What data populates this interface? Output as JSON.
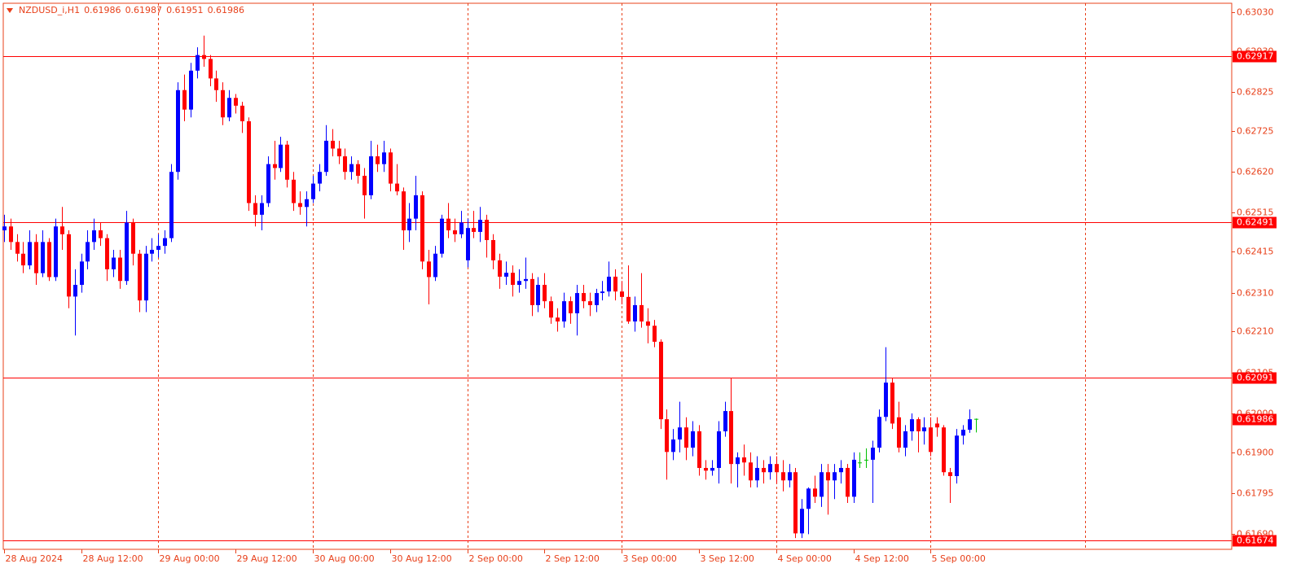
{
  "chart_data": {
    "type": "candlestick",
    "symbol": "NZDUSD_i,H1",
    "xlim": [
      -0.1,
      190.8
    ],
    "ylim": [
      0.61651,
      0.63053
    ],
    "xticks": [
      {
        "value": 0,
        "label": "28 Aug 2024"
      },
      {
        "value": 12,
        "label": "28 Aug 12:00"
      },
      {
        "value": 24,
        "label": "29 Aug 00:00"
      },
      {
        "value": 36,
        "label": "29 Aug 12:00"
      },
      {
        "value": 48,
        "label": "30 Aug 00:00"
      },
      {
        "value": 60,
        "label": "30 Aug 12:00"
      },
      {
        "value": 72,
        "label": "2 Sep 00:00"
      },
      {
        "value": 84,
        "label": "2 Sep 12:00"
      },
      {
        "value": 96,
        "label": "3 Sep 00:00"
      },
      {
        "value": 108,
        "label": "3 Sep 12:00"
      },
      {
        "value": 120,
        "label": "4 Sep 00:00"
      },
      {
        "value": 132,
        "label": "4 Sep 12:00"
      },
      {
        "value": 144,
        "label": "5 Sep 00:00"
      }
    ],
    "vgrid": [
      24,
      48,
      72,
      96,
      120,
      144,
      168
    ],
    "yticks": [
      {
        "value": 0.6303,
        "label": "0.63030"
      },
      {
        "value": 0.6293,
        "label": "0.62930"
      },
      {
        "value": 0.62825,
        "label": "0.62825"
      },
      {
        "value": 0.62725,
        "label": "0.62725"
      },
      {
        "value": 0.6262,
        "label": "0.62620"
      },
      {
        "value": 0.62515,
        "label": "0.62515"
      },
      {
        "value": 0.62415,
        "label": "0.62415"
      },
      {
        "value": 0.6231,
        "label": "0.62310"
      },
      {
        "value": 0.6221,
        "label": "0.62210"
      },
      {
        "value": 0.62105,
        "label": "0.62105"
      },
      {
        "value": 0.62,
        "label": "0.62000"
      },
      {
        "value": 0.619,
        "label": "0.61900"
      },
      {
        "value": 0.61795,
        "label": "0.61795"
      },
      {
        "value": 0.6169,
        "label": "0.61690"
      }
    ],
    "levels": [
      0.62917,
      0.62491,
      0.62091,
      0.61674
    ],
    "up_color": "#0000ff",
    "down_color": "#ff0000",
    "doji_color": "#00c000",
    "level_color": "#ff0000",
    "open": [
      0.6247,
      0.6248,
      0.6244,
      0.6241,
      0.6238,
      0.6244,
      0.6236,
      0.6244,
      0.6235,
      0.6248,
      0.6246,
      0.623,
      0.6233,
      0.6239,
      0.6244,
      0.6247,
      0.6245,
      0.6237,
      0.624,
      0.6234,
      0.6249,
      0.6241,
      0.6229,
      0.6241,
      0.6242,
      0.6243,
      0.6245,
      0.6262,
      0.6283,
      0.6278,
      0.6288,
      0.6292,
      0.6291,
      0.6286,
      0.6283,
      0.6276,
      0.6281,
      0.6279,
      0.6275,
      0.6254,
      0.6251,
      0.6254,
      0.6264,
      0.6263,
      0.6269,
      0.626,
      0.6254,
      0.6253,
      0.6255,
      0.6259,
      0.6262,
      0.627,
      0.6268,
      0.6266,
      0.6262,
      0.6264,
      0.6261,
      0.6256,
      0.6266,
      0.6264,
      0.6267,
      0.6259,
      0.6257,
      0.6247,
      0.625,
      0.6256,
      0.6239,
      0.6235,
      0.6241,
      0.625,
      0.6247,
      0.6246,
      0.62393,
      0.62476,
      0.62466,
      0.62497,
      0.62445,
      0.62393,
      0.62351,
      0.62361,
      0.6233,
      0.6234,
      0.62345,
      0.62278,
      0.6233,
      0.62288,
      0.62246,
      0.62236,
      0.62288,
      0.62257,
      0.62309,
      0.62288,
      0.62278,
      0.62309,
      0.62313,
      0.62351,
      0.62313,
      0.62299,
      0.62236,
      0.62278,
      0.62236,
      0.62225,
      0.62184,
      0.61985,
      0.61901,
      0.61933,
      0.61964,
      0.61912,
      0.61954,
      0.6186,
      0.61853,
      0.6186,
      0.61954,
      0.62006,
      0.6187,
      0.61887,
      0.61874,
      0.61828,
      0.6186,
      0.61849,
      0.6187,
      0.61849,
      0.61828,
      0.61849,
      0.61692,
      0.61755,
      0.61807,
      0.61786,
      0.61849,
      0.61828,
      0.61849,
      0.6186,
      0.61786,
      0.61874,
      0.61881,
      0.61881,
      0.61912,
      0.61991,
      0.62079,
      0.6199,
      0.61912,
      0.61954,
      0.61985,
      0.61954,
      0.61964,
      0.61974,
      0.61964,
      0.61849,
      0.61839,
      0.61943,
      0.61958,
      0.61986
    ],
    "high": [
      0.6251,
      0.625,
      0.6246,
      0.6244,
      0.6247,
      0.6246,
      0.6247,
      0.6245,
      0.625,
      0.6253,
      0.6247,
      0.6237,
      0.6241,
      0.6247,
      0.625,
      0.6249,
      0.6246,
      0.6242,
      0.6242,
      0.6252,
      0.625,
      0.6242,
      0.6243,
      0.6245,
      0.6246,
      0.6247,
      0.6264,
      0.6285,
      0.6287,
      0.629,
      0.6294,
      0.6297,
      0.6292,
      0.6288,
      0.6285,
      0.6283,
      0.6282,
      0.628,
      0.6276,
      0.6256,
      0.6256,
      0.6266,
      0.627,
      0.6271,
      0.627,
      0.6262,
      0.6257,
      0.6257,
      0.6261,
      0.6264,
      0.6274,
      0.6273,
      0.627,
      0.6268,
      0.6266,
      0.6265,
      0.6263,
      0.627,
      0.6269,
      0.627,
      0.6268,
      0.6264,
      0.6258,
      0.6254,
      0.6261,
      0.6257,
      0.6242,
      0.6243,
      0.6251,
      0.6254,
      0.625,
      0.6252,
      0.625,
      0.6252,
      0.6253,
      0.6251,
      0.6246,
      0.6241,
      0.6239,
      0.6238,
      0.6237,
      0.624,
      0.6236,
      0.6235,
      0.6236,
      0.623,
      0.6227,
      0.6231,
      0.623,
      0.6233,
      0.6233,
      0.6231,
      0.6232,
      0.6234,
      0.6239,
      0.6237,
      0.6234,
      0.6238,
      0.623,
      0.6236,
      0.6227,
      0.6224,
      0.6219,
      0.6201,
      0.6196,
      0.6203,
      0.6199,
      0.6198,
      0.6197,
      0.6188,
      0.6188,
      0.6198,
      0.6203,
      0.6209,
      0.619,
      0.6192,
      0.619,
      0.6189,
      0.6188,
      0.6189,
      0.6189,
      0.6188,
      0.6187,
      0.6186,
      0.6178,
      0.6181,
      0.6184,
      0.6187,
      0.6187,
      0.6187,
      0.6188,
      0.6187,
      0.619,
      0.619,
      0.6191,
      0.6193,
      0.6201,
      0.6217,
      0.6209,
      0.6203,
      0.6197,
      0.62,
      0.6199,
      0.6199,
      0.6199,
      0.6199,
      0.6197,
      0.6186,
      0.6196,
      0.6197,
      0.6201,
      0.61987
    ],
    "low": [
      0.6244,
      0.6242,
      0.6239,
      0.6236,
      0.6237,
      0.6233,
      0.6235,
      0.6234,
      0.6234,
      0.6242,
      0.6227,
      0.622,
      0.6231,
      0.6237,
      0.6242,
      0.6243,
      0.6234,
      0.6235,
      0.6232,
      0.6233,
      0.6238,
      0.6226,
      0.6226,
      0.6239,
      0.624,
      0.6241,
      0.6244,
      0.626,
      0.6275,
      0.6276,
      0.6286,
      0.6289,
      0.6284,
      0.628,
      0.6274,
      0.6275,
      0.6277,
      0.6272,
      0.6252,
      0.6248,
      0.6247,
      0.6253,
      0.626,
      0.6262,
      0.6258,
      0.6252,
      0.6251,
      0.6248,
      0.6254,
      0.6257,
      0.6261,
      0.6266,
      0.6264,
      0.626,
      0.626,
      0.6259,
      0.625,
      0.6255,
      0.6262,
      0.6262,
      0.6257,
      0.6256,
      0.6242,
      0.6244,
      0.6247,
      0.6237,
      0.6228,
      0.6234,
      0.624,
      0.6245,
      0.6244,
      0.6245,
      0.62375,
      0.6245,
      0.6244,
      0.624,
      0.6237,
      0.6232,
      0.6233,
      0.623,
      0.6231,
      0.6232,
      0.6225,
      0.6226,
      0.6227,
      0.6223,
      0.6221,
      0.6222,
      0.6223,
      0.622,
      0.6227,
      0.6225,
      0.6226,
      0.6229,
      0.623,
      0.6229,
      0.6228,
      0.6223,
      0.6221,
      0.6222,
      0.6218,
      0.6217,
      0.6196,
      0.6183,
      0.6188,
      0.619,
      0.6188,
      0.6189,
      0.6184,
      0.6183,
      0.6184,
      0.6182,
      0.6194,
      0.6182,
      0.6181,
      0.6184,
      0.6181,
      0.6181,
      0.6182,
      0.6183,
      0.6182,
      0.618,
      0.6181,
      0.6168,
      0.6168,
      0.6169,
      0.6177,
      0.6176,
      0.6174,
      0.6178,
      0.6182,
      0.6177,
      0.6177,
      0.6186,
      0.6186,
      0.6177,
      0.619,
      0.6198,
      0.6196,
      0.619,
      0.6189,
      0.6193,
      0.619,
      0.6192,
      0.6189,
      0.6194,
      0.6184,
      0.6177,
      0.6182,
      0.6192,
      0.6195,
      0.61951
    ],
    "close": [
      0.6248,
      0.6244,
      0.6241,
      0.6238,
      0.6244,
      0.6236,
      0.6244,
      0.6235,
      0.6248,
      0.6246,
      0.623,
      0.6233,
      0.6239,
      0.6244,
      0.6247,
      0.6245,
      0.6237,
      0.624,
      0.6234,
      0.6249,
      0.6241,
      0.6229,
      0.6241,
      0.6242,
      0.6243,
      0.6245,
      0.6262,
      0.6283,
      0.6278,
      0.6288,
      0.6292,
      0.6291,
      0.6286,
      0.6283,
      0.6276,
      0.6281,
      0.6279,
      0.6275,
      0.6254,
      0.6251,
      0.6254,
      0.6264,
      0.6263,
      0.6269,
      0.626,
      0.6254,
      0.6253,
      0.6255,
      0.6259,
      0.6262,
      0.627,
      0.6268,
      0.6266,
      0.6262,
      0.6264,
      0.6261,
      0.6256,
      0.6266,
      0.6264,
      0.6267,
      0.6259,
      0.6257,
      0.6247,
      0.625,
      0.6256,
      0.6239,
      0.6235,
      0.6241,
      0.625,
      0.6247,
      0.6246,
      0.6249,
      0.62476,
      0.62466,
      0.62497,
      0.62445,
      0.62393,
      0.62351,
      0.62361,
      0.6233,
      0.6234,
      0.62345,
      0.62278,
      0.6233,
      0.62288,
      0.62246,
      0.62236,
      0.62288,
      0.62257,
      0.62309,
      0.62288,
      0.62278,
      0.62309,
      0.62313,
      0.62351,
      0.62313,
      0.62299,
      0.62236,
      0.62278,
      0.62236,
      0.62225,
      0.62184,
      0.61985,
      0.61901,
      0.61933,
      0.61964,
      0.61912,
      0.61954,
      0.6186,
      0.61853,
      0.6186,
      0.61954,
      0.62006,
      0.6187,
      0.61887,
      0.61874,
      0.61828,
      0.6186,
      0.61849,
      0.6187,
      0.61849,
      0.61828,
      0.61849,
      0.61692,
      0.61755,
      0.61807,
      0.61786,
      0.61849,
      0.61828,
      0.61849,
      0.6186,
      0.61786,
      0.61881,
      0.61874,
      0.61881,
      0.61912,
      0.61991,
      0.62079,
      0.61974,
      0.61912,
      0.61954,
      0.61985,
      0.61954,
      0.61964,
      0.61901,
      0.61964,
      0.61849,
      0.61839,
      0.61943,
      0.61958,
      0.61985,
      0.61986
    ]
  }
}
